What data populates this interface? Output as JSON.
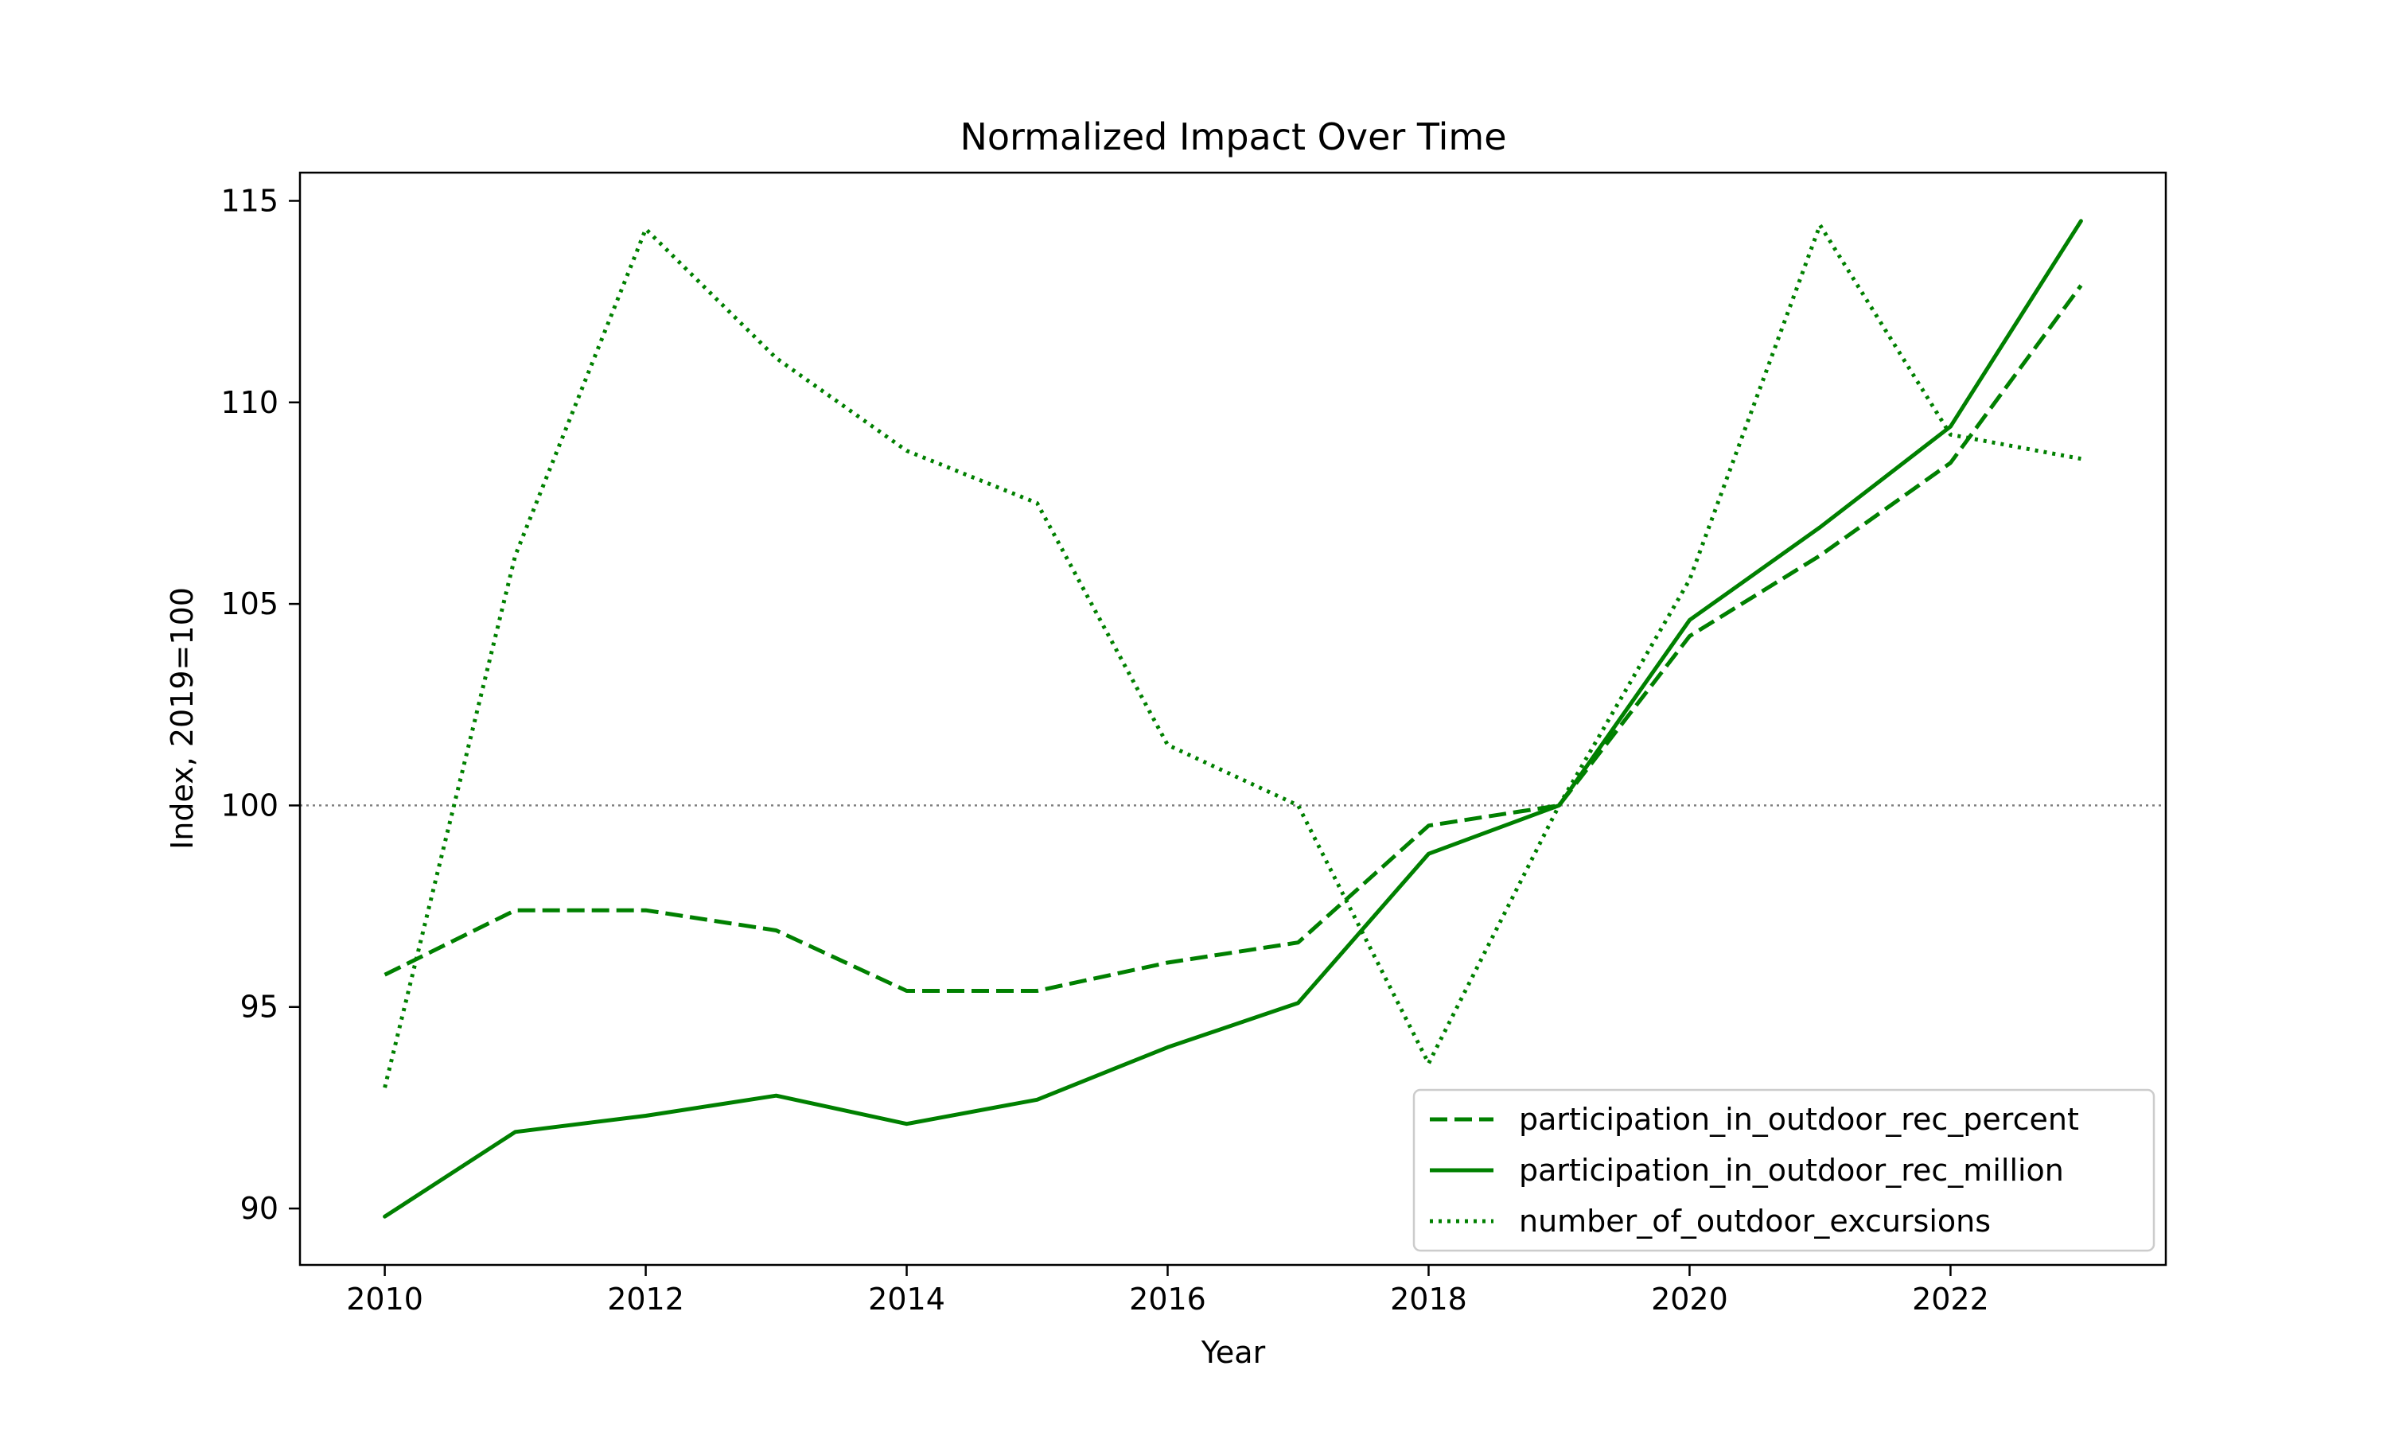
{
  "chart_data": {
    "type": "line",
    "title": "Normalized Impact Over Time",
    "xlabel": "Year",
    "ylabel": "Index, 2019=100",
    "x": [
      2010,
      2011,
      2012,
      2013,
      2014,
      2015,
      2016,
      2017,
      2018,
      2019,
      2020,
      2021,
      2022,
      2023
    ],
    "xlim": [
      2009.35,
      2023.65
    ],
    "ylim": [
      88.6,
      115.7
    ],
    "xticks": [
      2010,
      2012,
      2014,
      2016,
      2018,
      2020,
      2022
    ],
    "yticks": [
      90,
      95,
      100,
      105,
      110,
      115
    ],
    "grid": false,
    "legend_position": "lower-right",
    "reference_line": {
      "y": 100,
      "style": "dotted",
      "color": "#808080"
    },
    "series": [
      {
        "name": "participation_in_outdoor_rec_percent",
        "style": "dashed",
        "color": "#008000",
        "values": [
          95.8,
          97.4,
          97.4,
          96.9,
          95.4,
          95.4,
          96.1,
          96.6,
          99.5,
          100.0,
          104.2,
          106.2,
          108.5,
          112.9
        ]
      },
      {
        "name": "participation_in_outdoor_rec_million",
        "style": "solid",
        "color": "#008000",
        "values": [
          89.8,
          91.9,
          92.3,
          92.8,
          92.1,
          92.7,
          94.0,
          95.1,
          98.8,
          100.0,
          104.6,
          106.9,
          109.4,
          114.5
        ]
      },
      {
        "name": "number_of_outdoor_excursions",
        "style": "dotted",
        "color": "#008000",
        "values": [
          93.0,
          106.2,
          114.3,
          111.1,
          108.8,
          107.5,
          101.5,
          100.0,
          93.6,
          100.0,
          105.6,
          114.4,
          109.2,
          108.6
        ]
      }
    ]
  }
}
